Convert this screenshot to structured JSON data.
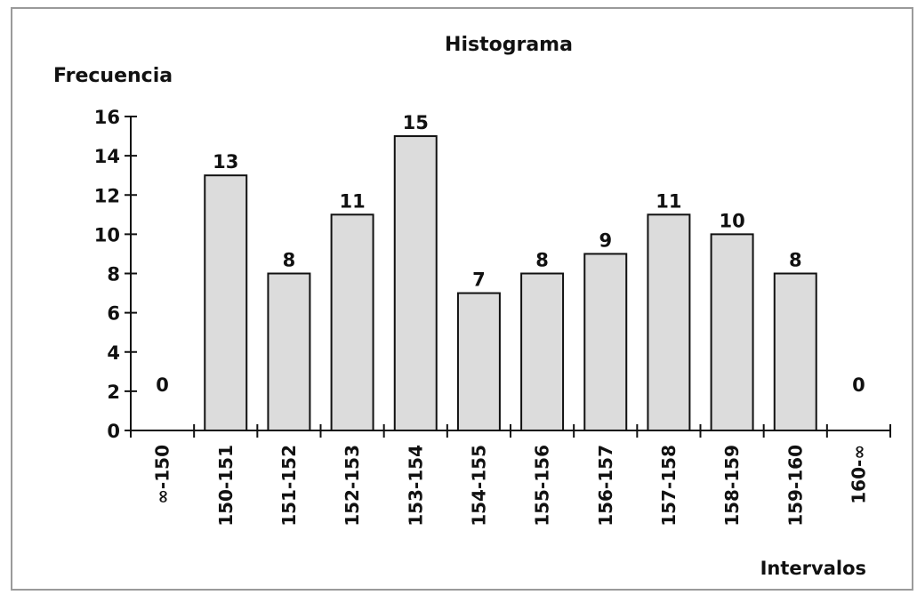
{
  "chart_data": {
    "type": "bar",
    "title": "Histograma",
    "ylabel": "Frecuencia",
    "xlabel": "Intervalos",
    "categories": [
      "∞-150",
      "150-151",
      "151-152",
      "152-153",
      "153-154",
      "154-155",
      "155-156",
      "156-157",
      "157-158",
      "158-159",
      "159-160",
      "160-∞"
    ],
    "values": [
      0,
      13,
      8,
      11,
      15,
      7,
      8,
      9,
      11,
      10,
      8,
      0
    ],
    "ylim": [
      0,
      16
    ],
    "yticks": [
      "0",
      "2",
      "4",
      "6",
      "8",
      "10",
      "12",
      "14",
      "16"
    ],
    "data_labels": [
      "0",
      "13",
      "8",
      "11",
      "15",
      "7",
      "8",
      "9",
      "11",
      "10",
      "8",
      "0"
    ],
    "grid": false,
    "legend": "none",
    "colors": {
      "bar_fill": "#dcdcdc",
      "bar_stroke": "#111111",
      "frame": "#9a9a9a"
    }
  }
}
